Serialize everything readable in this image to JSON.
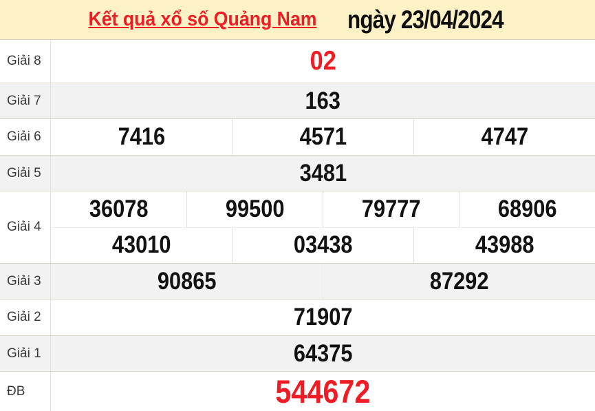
{
  "header": {
    "title_link": "Kết quả xổ số Quảng Nam",
    "title_date": "ngày 23/04/2024"
  },
  "table": {
    "rows": [
      {
        "label": "Giải 8",
        "numbers": [
          "02"
        ],
        "highlight": true
      },
      {
        "label": "Giải 7",
        "numbers": [
          "163"
        ]
      },
      {
        "label": "Giải 6",
        "numbers": [
          "7416",
          "4571",
          "4747"
        ]
      },
      {
        "label": "Giải 5",
        "numbers": [
          "3481"
        ]
      },
      {
        "label": "Giải 4",
        "lines": [
          [
            "36078",
            "99500",
            "79777",
            "68906"
          ],
          [
            "43010",
            "03438",
            "43988"
          ]
        ]
      },
      {
        "label": "Giải 3",
        "numbers": [
          "90865",
          "87292"
        ]
      },
      {
        "label": "Giải 2",
        "numbers": [
          "71907"
        ]
      },
      {
        "label": "Giải 1",
        "numbers": [
          "64375"
        ]
      },
      {
        "label": "ĐB",
        "numbers": [
          "544672"
        ],
        "highlight": true
      }
    ]
  },
  "colors": {
    "accent_red": "#ee1c25",
    "header_bg": "#fcf2c5",
    "stripe_gray": "#f2f2f2",
    "row_border": "#dbd5c9",
    "cell_border": "#e5e3dc"
  }
}
